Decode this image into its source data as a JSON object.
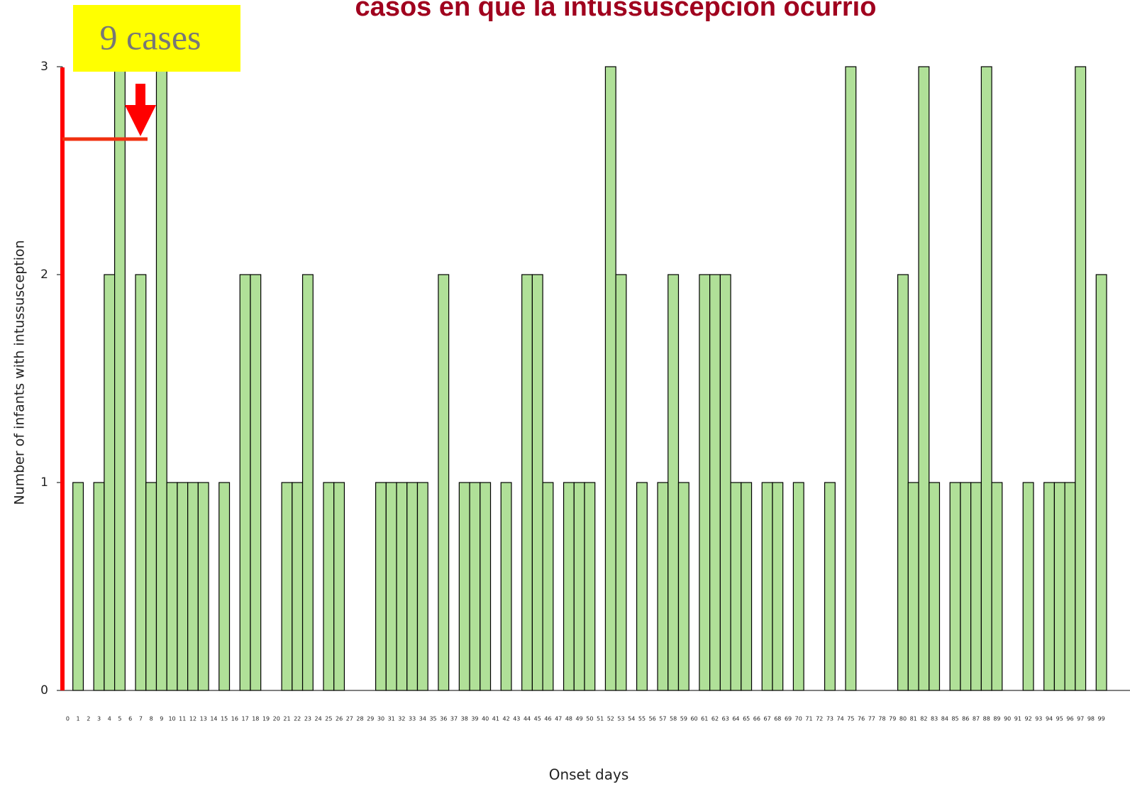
{
  "chart_data": {
    "type": "bar",
    "title": "casos en que la intussuscepción ocurrió",
    "annotation": "9 cases",
    "x_label": "Onset days",
    "y_label": "Number of infants with intussusception",
    "categories": [
      0,
      1,
      2,
      3,
      4,
      5,
      6,
      7,
      8,
      9,
      10,
      11,
      12,
      13,
      14,
      15,
      16,
      17,
      18,
      19,
      20,
      21,
      22,
      23,
      24,
      25,
      26,
      27,
      28,
      29,
      30,
      31,
      32,
      33,
      34,
      35,
      36,
      37,
      38,
      39,
      40,
      41,
      42,
      43,
      44,
      45,
      46,
      47,
      48,
      49,
      50,
      51,
      52,
      53,
      54,
      55,
      56,
      57,
      58,
      59,
      60,
      61,
      62,
      63,
      64,
      65,
      66,
      67,
      68,
      69,
      70,
      71,
      72,
      73,
      74,
      75,
      76,
      77,
      78,
      79,
      80,
      81,
      82,
      83,
      84,
      85,
      86,
      87,
      88,
      89,
      90,
      91,
      92,
      93,
      94,
      95,
      96,
      97,
      98,
      99
    ],
    "values": [
      0,
      1,
      0,
      1,
      2,
      3,
      0,
      2,
      1,
      3,
      1,
      1,
      1,
      1,
      0,
      1,
      0,
      2,
      2,
      0,
      0,
      1,
      1,
      2,
      0,
      1,
      1,
      0,
      0,
      0,
      1,
      1,
      1,
      1,
      1,
      0,
      2,
      0,
      1,
      1,
      1,
      0,
      1,
      0,
      2,
      2,
      1,
      0,
      1,
      1,
      1,
      0,
      3,
      2,
      0,
      1,
      0,
      1,
      2,
      1,
      0,
      2,
      2,
      2,
      1,
      1,
      0,
      1,
      1,
      0,
      1,
      0,
      0,
      1,
      0,
      3,
      0,
      0,
      0,
      0,
      2,
      1,
      3,
      1,
      0,
      1,
      1,
      1,
      3,
      1,
      0,
      0,
      1,
      0,
      1,
      1,
      1,
      3,
      0,
      2
    ],
    "color": "#b0e098",
    "ylim": [
      0,
      3
    ],
    "yticks": [
      0,
      1,
      2,
      3
    ]
  }
}
